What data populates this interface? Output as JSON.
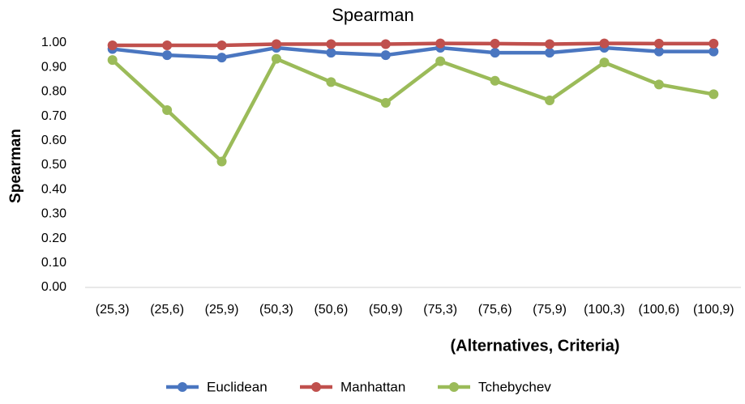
{
  "chart_data": {
    "type": "line",
    "title": "Spearman",
    "x_label": "(Alternatives, Criteria)",
    "y_label": "Spearman",
    "categories": [
      "(25,3)",
      "(25,6)",
      "(25,9)",
      "(50,3)",
      "(50,6)",
      "(50,9)",
      "(75,3)",
      "(75,6)",
      "(75,9)",
      "(100,3)",
      "(100,6)",
      "(100,9)"
    ],
    "series": [
      {
        "name": "Euclidean",
        "color": "#4a76c0",
        "values": [
          0.975,
          0.95,
          0.94,
          0.98,
          0.96,
          0.95,
          0.98,
          0.96,
          0.96,
          0.98,
          0.965,
          0.965
        ]
      },
      {
        "name": "Manhattan",
        "color": "#c0504d",
        "values": [
          0.99,
          0.99,
          0.99,
          0.995,
          0.995,
          0.995,
          0.998,
          0.997,
          0.995,
          0.998,
          0.997,
          0.997
        ]
      },
      {
        "name": "Tchebychev",
        "color": "#9bbb59",
        "values": [
          0.93,
          0.725,
          0.515,
          0.935,
          0.84,
          0.755,
          0.925,
          0.845,
          0.765,
          0.92,
          0.83,
          0.79
        ]
      }
    ],
    "ylim": [
      0,
      1
    ],
    "yticks": [
      {
        "value": 0,
        "label": "0.00"
      },
      {
        "value": 0.1,
        "label": "0.10"
      },
      {
        "value": 0.2,
        "label": "0.20"
      },
      {
        "value": 0.3,
        "label": "0.30"
      },
      {
        "value": 0.4,
        "label": "0.40"
      },
      {
        "value": 0.5,
        "label": "0.50"
      },
      {
        "value": 0.6,
        "label": "0.60"
      },
      {
        "value": 0.7,
        "label": "0.70"
      },
      {
        "value": 0.8,
        "label": "0.80"
      },
      {
        "value": 0.9,
        "label": "0.90"
      },
      {
        "value": 1,
        "label": "1.00"
      }
    ],
    "grid": false
  }
}
